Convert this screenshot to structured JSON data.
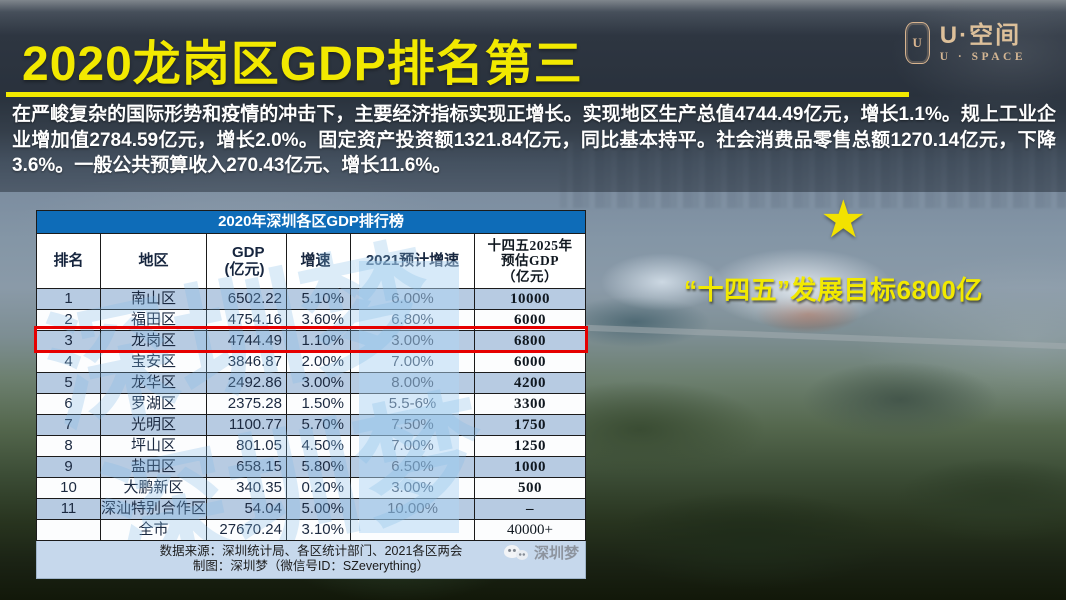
{
  "header": {
    "title": "2020龙岗区GDP排名第三",
    "paragraph": "在严峻复杂的国际形势和疫情的冲击下，主要经济指标实现正增长。实现地区生产总值4744.49亿元，增长1.1%。规上工业企业增加值2784.59亿元，增长2.0%。固定资产投资额1321.84亿元，同比基本持平。社会消费品零售总额1270.14亿元，下降3.6%。一般公共预算收入270.43亿元、增长11.6%。"
  },
  "logo": {
    "badge_letter": "U",
    "name": "U·空间",
    "sub": "U · SPACE"
  },
  "callout": {
    "star_icon": "★",
    "slogan": "“十四五”发展目标6800亿"
  },
  "table": {
    "title": "2020年深圳各区GDP排行榜",
    "headers": [
      "排名",
      "地区",
      "GDP\n(亿元)",
      "增速",
      "2021预计增速",
      "十四五2025年\n预估GDP\n（亿元）"
    ],
    "rows": [
      {
        "rank": "1",
        "district": "南山区",
        "gdp": "6502.22",
        "growth": "5.10%",
        "est2021": "6.00%",
        "est2025": "10000"
      },
      {
        "rank": "2",
        "district": "福田区",
        "gdp": "4754.16",
        "growth": "3.60%",
        "est2021": "6.80%",
        "est2025": "6000"
      },
      {
        "rank": "3",
        "district": "龙岗区",
        "gdp": "4744.49",
        "growth": "1.10%",
        "est2021": "3.00%",
        "est2025": "6800"
      },
      {
        "rank": "4",
        "district": "宝安区",
        "gdp": "3846.87",
        "growth": "2.00%",
        "est2021": "7.00%",
        "est2025": "6000"
      },
      {
        "rank": "5",
        "district": "龙华区",
        "gdp": "2492.86",
        "growth": "3.00%",
        "est2021": "8.00%",
        "est2025": "4200"
      },
      {
        "rank": "6",
        "district": "罗湖区",
        "gdp": "2375.28",
        "growth": "1.50%",
        "est2021": "5.5-6%",
        "est2025": "3300"
      },
      {
        "rank": "7",
        "district": "光明区",
        "gdp": "1100.77",
        "growth": "5.70%",
        "est2021": "7.50%",
        "est2025": "1750"
      },
      {
        "rank": "8",
        "district": "坪山区",
        "gdp": "801.05",
        "growth": "4.50%",
        "est2021": "7.00%",
        "est2025": "1250"
      },
      {
        "rank": "9",
        "district": "盐田区",
        "gdp": "658.15",
        "growth": "5.80%",
        "est2021": "6.50%",
        "est2025": "1000"
      },
      {
        "rank": "10",
        "district": "大鹏新区",
        "gdp": "340.35",
        "growth": "0.20%",
        "est2021": "3.00%",
        "est2025": "500"
      },
      {
        "rank": "11",
        "district": "深汕特别合作区",
        "gdp": "54.04",
        "growth": "5.00%",
        "est2021": "10.00%",
        "est2025": "–"
      },
      {
        "rank": "",
        "district": "全市",
        "gdp": "27670.24",
        "growth": "3.10%",
        "est2021": "",
        "est2025": "40000+"
      }
    ],
    "highlight_index": 2,
    "footer_line1": "数据来源：深圳统计局、各区统计部门、2021各区两会",
    "footer_line2": "制图：深圳梦（微信号ID：SZeverything）",
    "watermark": "深圳梦",
    "brand": "深圳梦"
  },
  "colors": {
    "accent_yellow": "#f2e900",
    "table_title_blue": "#0e6cb8",
    "row_blue": "#b7cbe2",
    "highlight_red": "#e60000",
    "footer_blue": "#c6d8ec",
    "logo_beige": "#d8b48f"
  }
}
